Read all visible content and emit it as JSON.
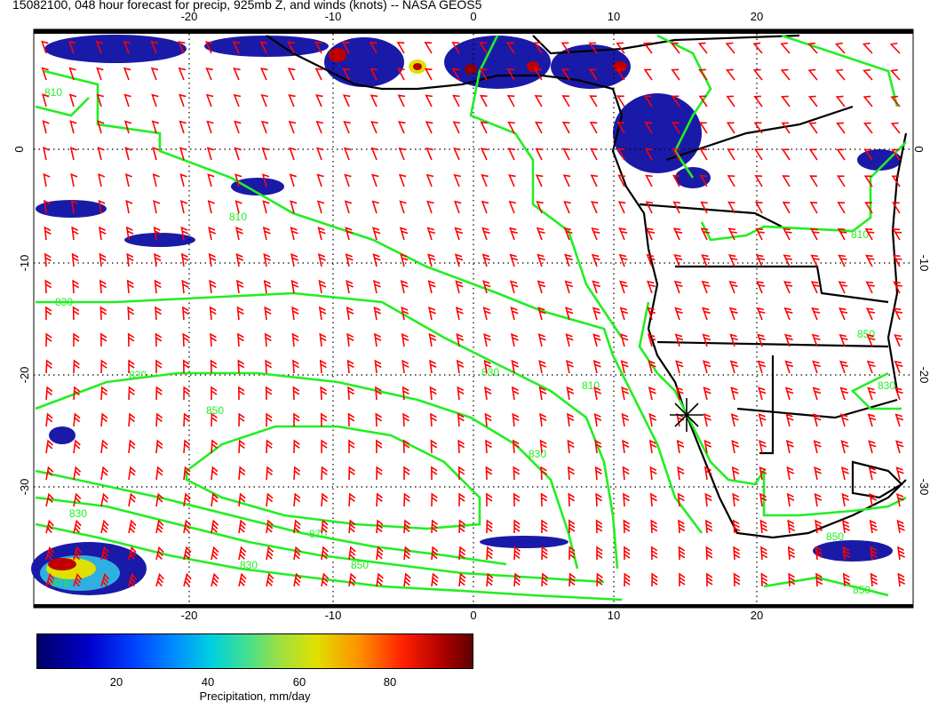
{
  "title": "15082100, 048 hour forecast for precip, 925mb Z, and winds (knots) -- NASA GEOS5",
  "axes": {
    "lon_labels": [
      "-20",
      "-10",
      "0",
      "10",
      "20"
    ],
    "lat_labels": [
      "0",
      "-10",
      "-20",
      "-30"
    ]
  },
  "contour_labels": [
    "810",
    "830",
    "850",
    "870",
    "830",
    "850",
    "830",
    "810",
    "830",
    "810",
    "830",
    "830",
    "850",
    "850",
    "830",
    "810",
    "870",
    "850"
  ],
  "colorbar": {
    "ticks": [
      "20",
      "40",
      "60",
      "80"
    ],
    "label": "Precipitation, mm/day"
  },
  "colors": {
    "wind_barbs": "#ff0000",
    "contours": "#22ee22",
    "coastline": "#000000",
    "grid": "#000000"
  },
  "icons": [
    "station-asterisk-icon"
  ]
}
